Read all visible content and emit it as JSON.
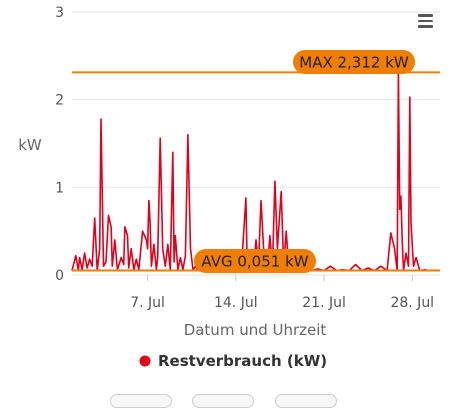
{
  "chart_data": {
    "type": "line",
    "title": "",
    "xlabel": "Datum und Uhrzeit",
    "ylabel": "kW",
    "ylim": [
      0,
      3
    ],
    "yticks": [
      0,
      1,
      2,
      3
    ],
    "xticks": [
      "7. Jul",
      "14. Jul",
      "21. Jul",
      "28. Jul"
    ],
    "xtick_days": [
      7,
      14,
      21,
      28
    ],
    "xlim_days": [
      1.0,
      30.2
    ],
    "x_unit": "day of July",
    "legend_position": "bottom-center",
    "grid": true,
    "series": [
      {
        "name": "Restverbrauch (kW)",
        "color": "#e3001b",
        "x": [
          1.0,
          1.3,
          1.5,
          1.6,
          1.8,
          2.0,
          2.2,
          2.4,
          2.6,
          2.8,
          3.0,
          3.2,
          3.3,
          3.5,
          3.7,
          3.9,
          4.1,
          4.2,
          4.4,
          4.6,
          4.9,
          5.1,
          5.2,
          5.4,
          5.5,
          5.7,
          5.9,
          6.1,
          6.3,
          6.6,
          6.9,
          7.0,
          7.1,
          7.2,
          7.3,
          7.5,
          7.7,
          7.8,
          8.0,
          8.2,
          8.4,
          8.6,
          8.8,
          9.0,
          9.1,
          9.2,
          9.4,
          9.6,
          9.8,
          10.0,
          10.2,
          10.4,
          10.6,
          10.8,
          11.0,
          11.2,
          11.3,
          11.4,
          11.6,
          11.8,
          12.0,
          12.2,
          12.4,
          12.6,
          13.0,
          13.5,
          14.0,
          14.5,
          14.8,
          14.9,
          15.0,
          15.2,
          15.4,
          15.6,
          15.8,
          16.0,
          16.2,
          16.5,
          16.7,
          16.9,
          17.1,
          17.3,
          17.6,
          17.8,
          18.0,
          18.2,
          18.4,
          18.7,
          19.0,
          19.5,
          20.0,
          20.5,
          21.0,
          21.5,
          22.0,
          22.5,
          23.0,
          23.5,
          24.0,
          24.5,
          25.0,
          25.5,
          26.0,
          26.3,
          26.6,
          26.8,
          26.9,
          27.0,
          27.1,
          27.2,
          27.3,
          27.5,
          27.7,
          27.8,
          27.9,
          28.1,
          28.3,
          28.6,
          29.0,
          29.3,
          29.6,
          29.9,
          30.2
        ],
        "y": [
          0.05,
          0.22,
          0.05,
          0.2,
          0.06,
          0.25,
          0.08,
          0.18,
          0.1,
          0.65,
          0.05,
          0.3,
          1.78,
          0.1,
          0.15,
          0.68,
          0.55,
          0.1,
          0.4,
          0.06,
          0.2,
          0.12,
          0.55,
          0.45,
          0.08,
          0.3,
          0.06,
          0.18,
          0.06,
          0.5,
          0.4,
          0.3,
          0.85,
          0.6,
          0.1,
          0.35,
          0.06,
          0.2,
          1.56,
          0.3,
          0.1,
          0.35,
          0.06,
          1.4,
          0.15,
          0.45,
          0.06,
          0.2,
          0.06,
          0.22,
          1.6,
          0.3,
          0.06,
          0.1,
          0.05,
          0.15,
          0.08,
          0.05,
          0.06,
          0.1,
          0.05,
          0.12,
          0.06,
          0.05,
          0.05,
          0.15,
          0.05,
          0.2,
          0.88,
          0.1,
          0.05,
          0.25,
          0.06,
          0.4,
          0.12,
          0.85,
          0.3,
          0.06,
          0.45,
          0.06,
          1.07,
          0.3,
          0.95,
          0.1,
          0.5,
          0.06,
          0.05,
          0.1,
          0.05,
          0.08,
          0.05,
          0.07,
          0.05,
          0.1,
          0.05,
          0.06,
          0.05,
          0.12,
          0.05,
          0.08,
          0.05,
          0.1,
          0.05,
          0.48,
          0.3,
          0.05,
          2.31,
          0.75,
          0.9,
          0.4,
          0.05,
          0.25,
          0.1,
          2.03,
          0.6,
          0.1,
          0.2,
          0.05,
          0.06,
          0.05,
          0.05,
          0.05,
          0.05
        ]
      }
    ],
    "plot_lines": [
      {
        "label": "MAX 2,312 kW",
        "value": 2.312,
        "color": "#f07e00"
      },
      {
        "label": "AVG 0,051 kW",
        "value": 0.051,
        "color": "#f07e00"
      }
    ],
    "plotline_label_bg": "#f07e00",
    "grid_color": "#e6e6e6"
  }
}
